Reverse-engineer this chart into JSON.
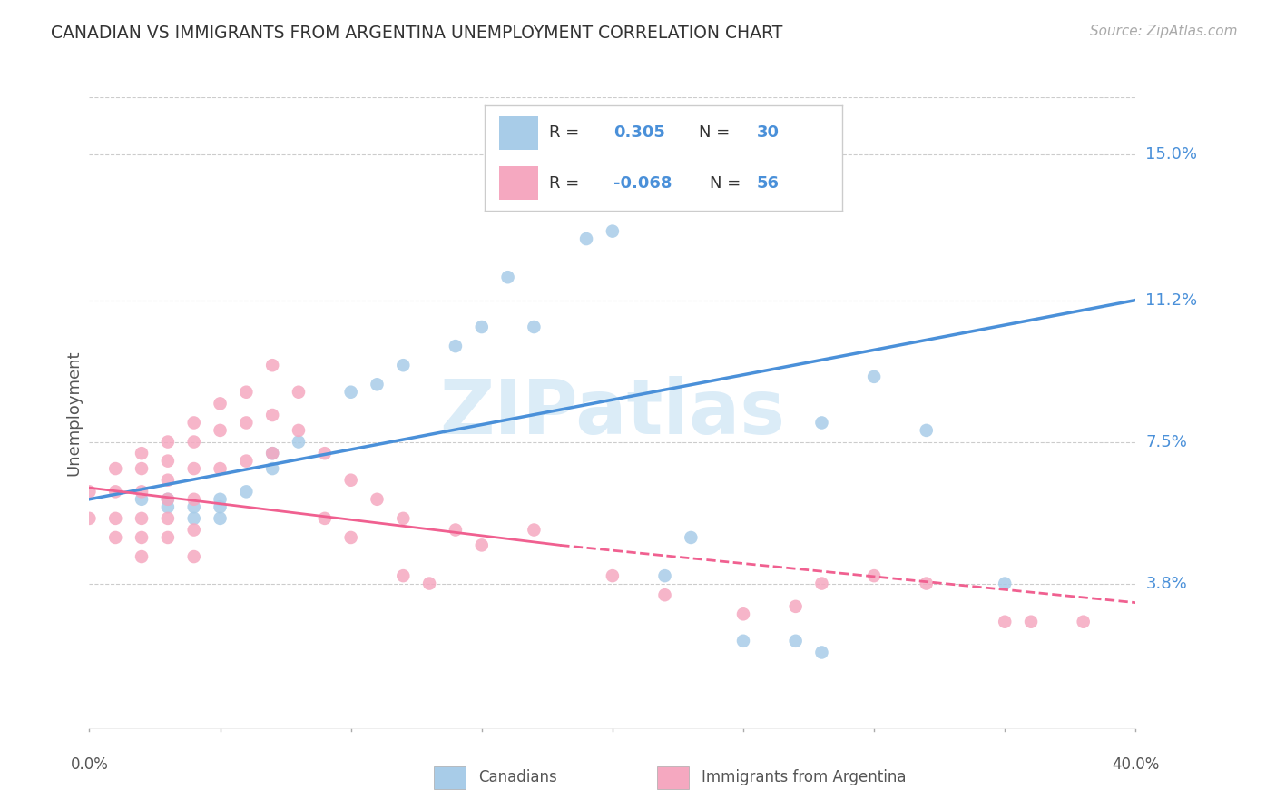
{
  "title": "CANADIAN VS IMMIGRANTS FROM ARGENTINA UNEMPLOYMENT CORRELATION CHART",
  "source": "Source: ZipAtlas.com",
  "ylabel": "Unemployment",
  "ytick_labels": [
    "15.0%",
    "11.2%",
    "7.5%",
    "3.8%"
  ],
  "ytick_values": [
    0.15,
    0.112,
    0.075,
    0.038
  ],
  "xlim": [
    0.0,
    0.4
  ],
  "ylim": [
    0.0,
    0.165
  ],
  "legend_r_canadian": "0.305",
  "legend_n_canadian": "30",
  "legend_r_argentina": "-0.068",
  "legend_n_argentina": "56",
  "color_canadian": "#a8cce8",
  "color_argentina": "#f5a8c0",
  "color_canadian_line": "#4a90d9",
  "color_argentina_line": "#f06090",
  "color_grid": "#cccccc",
  "watermark_text": "ZIPatlas",
  "watermark_color": "#cce4f5",
  "canadians_x": [
    0.02,
    0.03,
    0.03,
    0.04,
    0.04,
    0.05,
    0.05,
    0.05,
    0.06,
    0.07,
    0.07,
    0.08,
    0.1,
    0.11,
    0.12,
    0.14,
    0.15,
    0.16,
    0.17,
    0.19,
    0.2,
    0.22,
    0.23,
    0.25,
    0.27,
    0.28,
    0.28,
    0.3,
    0.32,
    0.35
  ],
  "canadians_y": [
    0.06,
    0.06,
    0.058,
    0.058,
    0.055,
    0.06,
    0.058,
    0.055,
    0.062,
    0.068,
    0.072,
    0.075,
    0.088,
    0.09,
    0.095,
    0.1,
    0.105,
    0.118,
    0.105,
    0.128,
    0.13,
    0.04,
    0.05,
    0.023,
    0.023,
    0.02,
    0.08,
    0.092,
    0.078,
    0.038
  ],
  "argentina_x": [
    0.0,
    0.0,
    0.01,
    0.01,
    0.01,
    0.01,
    0.02,
    0.02,
    0.02,
    0.02,
    0.02,
    0.02,
    0.03,
    0.03,
    0.03,
    0.03,
    0.03,
    0.03,
    0.04,
    0.04,
    0.04,
    0.04,
    0.04,
    0.04,
    0.05,
    0.05,
    0.05,
    0.06,
    0.06,
    0.06,
    0.07,
    0.07,
    0.07,
    0.08,
    0.08,
    0.09,
    0.09,
    0.1,
    0.1,
    0.11,
    0.12,
    0.12,
    0.13,
    0.14,
    0.15,
    0.17,
    0.2,
    0.22,
    0.25,
    0.27,
    0.28,
    0.3,
    0.32,
    0.35,
    0.36,
    0.38
  ],
  "argentina_y": [
    0.062,
    0.055,
    0.068,
    0.062,
    0.055,
    0.05,
    0.072,
    0.068,
    0.062,
    0.055,
    0.05,
    0.045,
    0.075,
    0.07,
    0.065,
    0.06,
    0.055,
    0.05,
    0.08,
    0.075,
    0.068,
    0.06,
    0.052,
    0.045,
    0.085,
    0.078,
    0.068,
    0.088,
    0.08,
    0.07,
    0.095,
    0.082,
    0.072,
    0.088,
    0.078,
    0.072,
    0.055,
    0.065,
    0.05,
    0.06,
    0.055,
    0.04,
    0.038,
    0.052,
    0.048,
    0.052,
    0.04,
    0.035,
    0.03,
    0.032,
    0.038,
    0.04,
    0.038,
    0.028,
    0.028,
    0.028
  ],
  "trend_canadian_x0": 0.0,
  "trend_canadian_y0": 0.06,
  "trend_canadian_x1": 0.4,
  "trend_canadian_y1": 0.112,
  "trend_argentina_solid_x0": 0.0,
  "trend_argentina_solid_y0": 0.063,
  "trend_argentina_solid_x1": 0.18,
  "trend_argentina_solid_y1": 0.048,
  "trend_argentina_dash_x0": 0.18,
  "trend_argentina_dash_y0": 0.048,
  "trend_argentina_dash_x1": 0.4,
  "trend_argentina_dash_y1": 0.033
}
